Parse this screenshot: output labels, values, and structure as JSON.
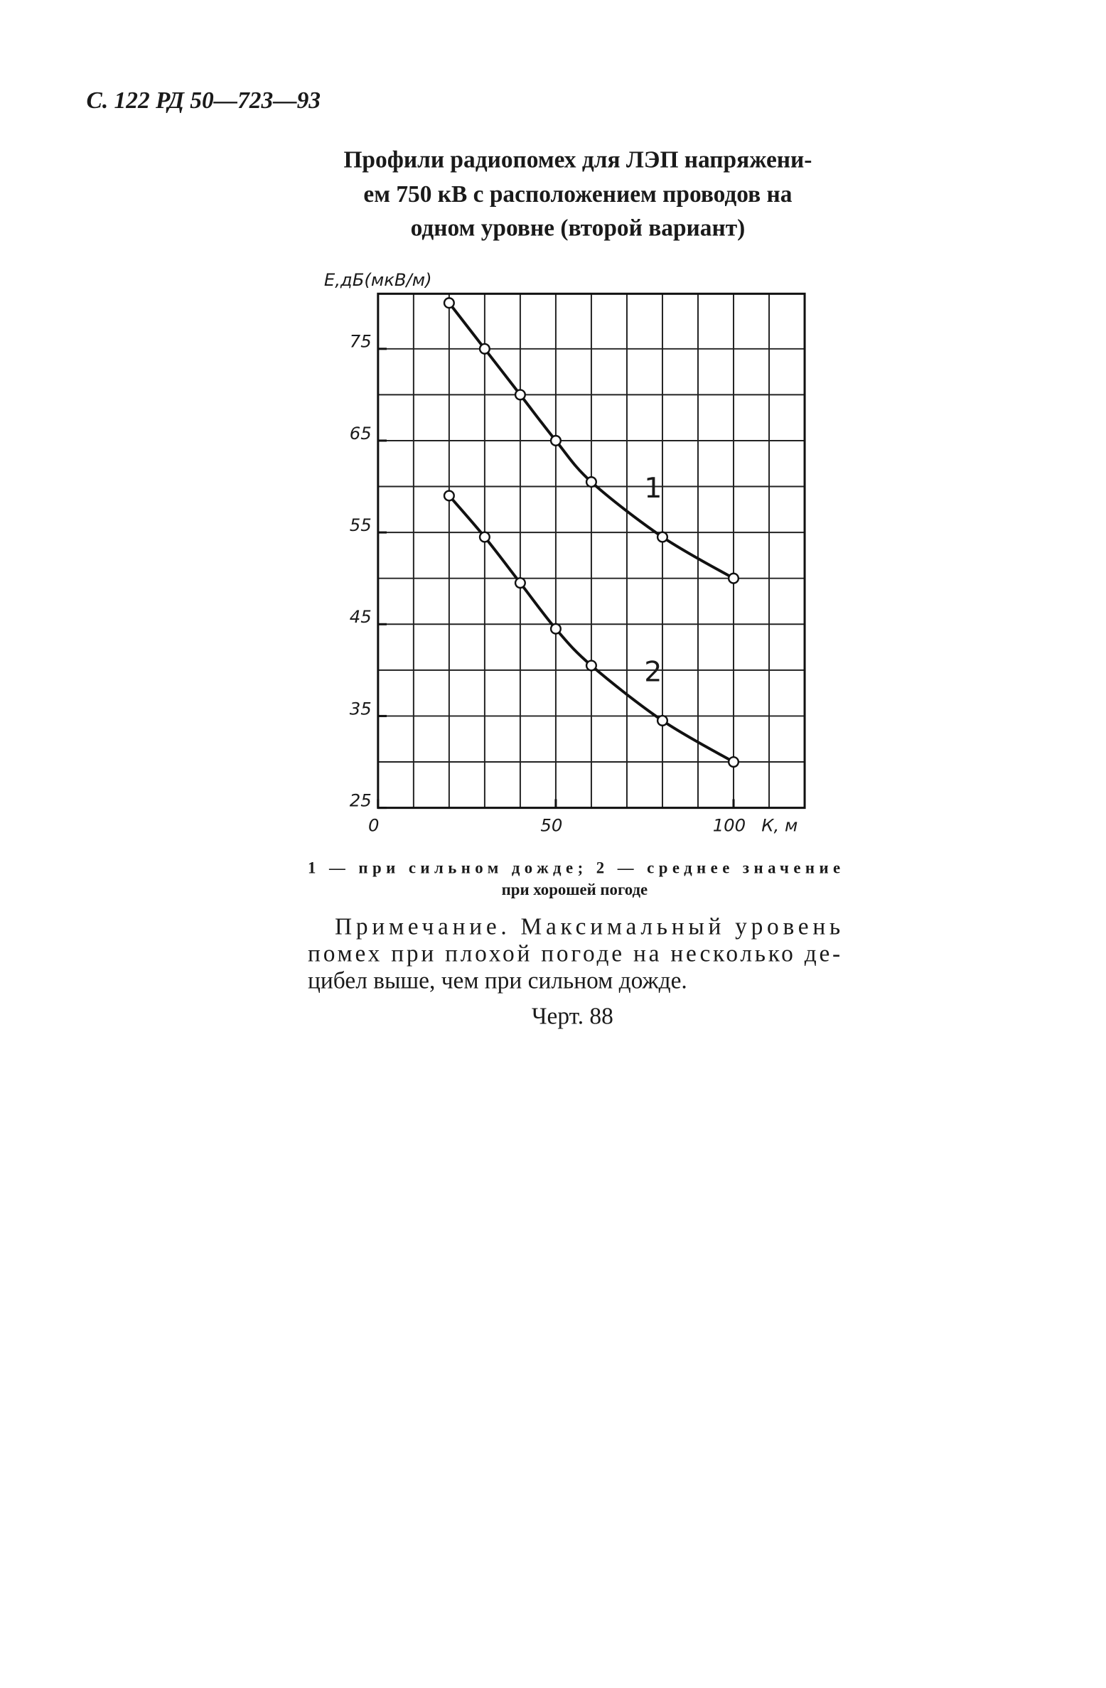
{
  "header": "С. 122 РД 50—723—93",
  "title": [
    "Профили радиопомех для ЛЭП напряжени-",
    "ем 750 кВ с расположением проводов на",
    "одном уровне (второй вариант)"
  ],
  "chart_data": {
    "type": "line",
    "y_label": "Е,дБ(мкВ/м)",
    "x_label": "К, м",
    "x": [
      20,
      30,
      40,
      50,
      60,
      80,
      100
    ],
    "series": [
      {
        "name": "1",
        "color": "#111111",
        "values": [
          80,
          75,
          70,
          65,
          60.5,
          54.5,
          50
        ]
      },
      {
        "name": "2",
        "color": "#111111",
        "values": [
          59,
          54.5,
          49.5,
          44.5,
          40.5,
          34.5,
          30
        ]
      }
    ],
    "xlim": [
      0,
      120
    ],
    "ylim": [
      25,
      81
    ],
    "xticks": [
      0,
      50,
      100
    ],
    "yticks": [
      25,
      35,
      45,
      55,
      65,
      75
    ],
    "grid_x": [
      10,
      20,
      30,
      40,
      50,
      60,
      70,
      80,
      90,
      100,
      110
    ],
    "grid_y": [
      30,
      35,
      40,
      45,
      50,
      55,
      60,
      65,
      70,
      75
    ]
  },
  "caption": [
    "1 — при сильном дожде; 2 — среднее значение",
    "при хорошей погоде"
  ],
  "note": [
    "Примечание. Максимальный уровень",
    "помех при плохой погоде на несколько де-",
    "цибел выше, чем при сильном дожде."
  ],
  "figure": "Черт. 88"
}
